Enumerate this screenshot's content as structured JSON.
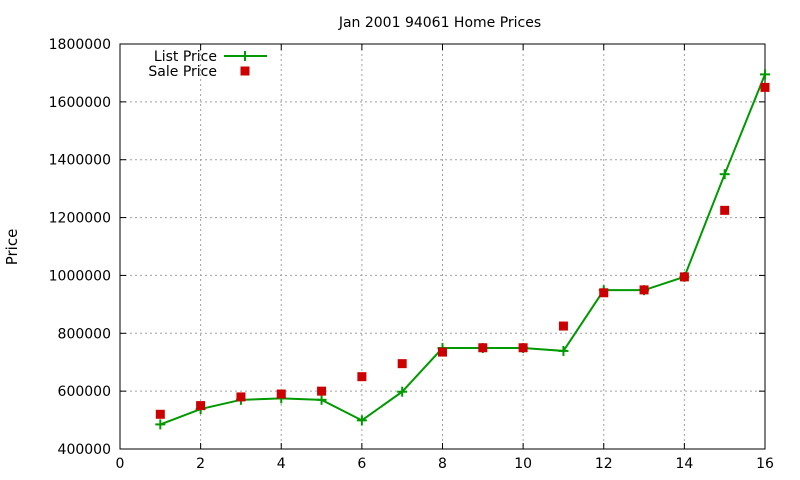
{
  "chart_data": {
    "type": "line",
    "title": "Jan 2001 94061 Home Prices",
    "xlabel": "",
    "ylabel": "Price",
    "xlim": [
      0,
      16
    ],
    "ylim": [
      400000,
      1800000
    ],
    "xticks": [
      0,
      2,
      4,
      6,
      8,
      10,
      12,
      14,
      16
    ],
    "yticks": [
      400000,
      600000,
      800000,
      1000000,
      1200000,
      1400000,
      1600000,
      1800000
    ],
    "grid": true,
    "legend_position": "top-left",
    "series": [
      {
        "name": "List Price",
        "style": "line+plus",
        "color": "#009900",
        "x": [
          1,
          2,
          3,
          4,
          5,
          6,
          7,
          8,
          9,
          10,
          11,
          12,
          13,
          14,
          15,
          16
        ],
        "y": [
          485000,
          538000,
          570000,
          575000,
          570000,
          499000,
          598000,
          749000,
          749000,
          749000,
          739000,
          949000,
          949000,
          995000,
          1350000,
          1695000
        ]
      },
      {
        "name": "Sale Price",
        "style": "square",
        "color": "#cc0000",
        "x": [
          1,
          2,
          3,
          4,
          5,
          6,
          7,
          8,
          9,
          10,
          11,
          12,
          13,
          14,
          15,
          16
        ],
        "y": [
          520000,
          550000,
          580000,
          590000,
          600000,
          650000,
          695000,
          735000,
          750000,
          750000,
          825000,
          940000,
          950000,
          995000,
          1225000,
          1650000
        ]
      }
    ]
  }
}
